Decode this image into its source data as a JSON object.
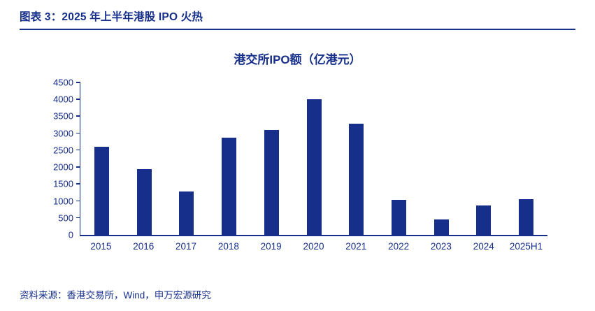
{
  "header": {
    "title": "图表 3：2025 年上半年港股 IPO 火热"
  },
  "footer": {
    "source": "资料来源：香港交易所，Wind，申万宏源研究"
  },
  "colors": {
    "accent": "#162f8a"
  },
  "chart_data": {
    "type": "bar",
    "title": "港交所IPO额（亿港元）",
    "categories": [
      "2015",
      "2016",
      "2017",
      "2018",
      "2019",
      "2020",
      "2021",
      "2022",
      "2023",
      "2024",
      "2025H1"
    ],
    "values": [
      2600,
      1950,
      1280,
      2870,
      3100,
      4000,
      3280,
      1040,
      460,
      870,
      1050
    ],
    "xlabel": "",
    "ylabel": "",
    "ylim": [
      0,
      4500
    ],
    "ytick_step": 500,
    "grid": false,
    "legend": "none"
  }
}
